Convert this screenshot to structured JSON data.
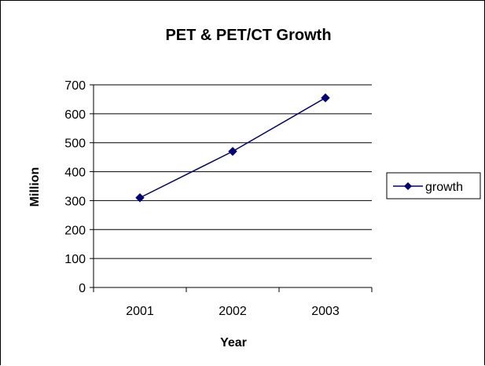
{
  "chart_data": {
    "type": "line",
    "title": "PET & PET/CT Growth",
    "xlabel": "Year",
    "ylabel": "Million",
    "categories": [
      "2001",
      "2002",
      "2003"
    ],
    "series": [
      {
        "name": "growth",
        "values": [
          310,
          470,
          655
        ],
        "color": "#000080"
      }
    ],
    "ylim": [
      0,
      700
    ],
    "yticks": [
      "0",
      "100",
      "200",
      "300",
      "400",
      "500",
      "600",
      "700"
    ],
    "grid": true,
    "legend": "right"
  }
}
